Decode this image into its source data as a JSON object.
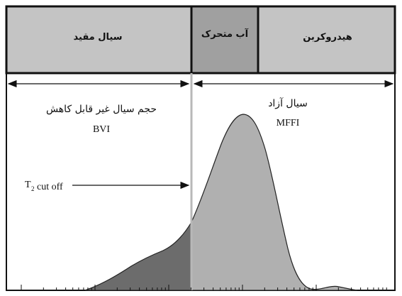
{
  "bands": {
    "bound_fluid": "سیال مقید",
    "movable_water": "آب متحرک",
    "hydrocarbon": "هیدروکربن"
  },
  "left_region": {
    "title": "حجم سیال غیر قابل کاهش",
    "abbr": "BVI"
  },
  "right_region": {
    "title": "سیال آزاد",
    "abbr": "MFFI"
  },
  "cutoff": {
    "label_main": "T",
    "label_sub": "2",
    "label_rest": "cut off"
  },
  "colors": {
    "band_fill": "#c4c4c4",
    "band_mid_fill": "#a0a0a0",
    "bvi_fill": "#6c6c6c",
    "mffi_fill": "#b0b0b0",
    "cutoff_line": "#b8b8b8"
  }
}
